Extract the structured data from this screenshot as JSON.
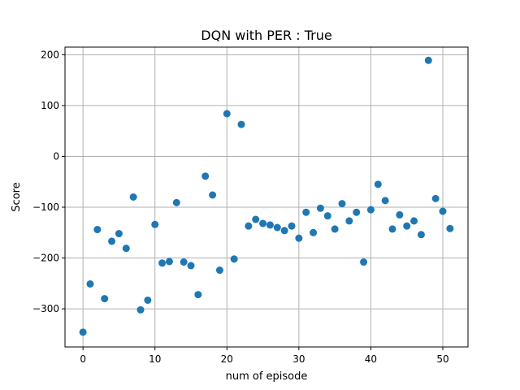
{
  "chart_data": {
    "type": "scatter",
    "title": "DQN with PER : True",
    "xlabel": "num of episode",
    "ylabel": "Score",
    "xlim": [
      -2.5,
      53.5
    ],
    "ylim": [
      -375,
      215
    ],
    "xticks": [
      0,
      10,
      20,
      30,
      40,
      50
    ],
    "yticks": [
      -300,
      -200,
      -100,
      0,
      100,
      200
    ],
    "xtick_labels": [
      "0",
      "10",
      "20",
      "30",
      "40",
      "50"
    ],
    "ytick_labels": [
      "−300",
      "−200",
      "−100",
      "0",
      "100",
      "200"
    ],
    "grid": true,
    "marker_color": "#1f77b4",
    "series": [
      {
        "x": [
          0,
          1,
          2,
          3,
          4,
          5,
          6,
          7,
          8,
          9,
          10,
          11,
          12,
          13,
          14,
          15,
          16,
          17,
          18,
          19,
          20,
          21,
          22,
          23,
          24,
          25,
          26,
          27,
          28,
          29,
          30,
          31,
          32,
          33,
          34,
          35,
          36,
          37,
          38,
          39,
          40,
          41,
          42,
          43,
          44,
          45,
          46,
          47,
          48,
          49,
          50,
          51
        ],
        "y": [
          -346,
          -251,
          -144,
          -280,
          -167,
          -152,
          -181,
          -80,
          -302,
          -283,
          -134,
          -210,
          -207,
          -91,
          -208,
          -215,
          -272,
          -39,
          -76,
          -224,
          84,
          -202,
          63,
          -137,
          -124,
          -132,
          -135,
          -140,
          -146,
          -137,
          -161,
          -110,
          -150,
          -102,
          -117,
          -143,
          -93,
          -127,
          -110,
          -208,
          -105,
          -55,
          -87,
          -143,
          -115,
          -137,
          -127,
          -154,
          189,
          -83,
          -108,
          -142
        ]
      }
    ]
  }
}
